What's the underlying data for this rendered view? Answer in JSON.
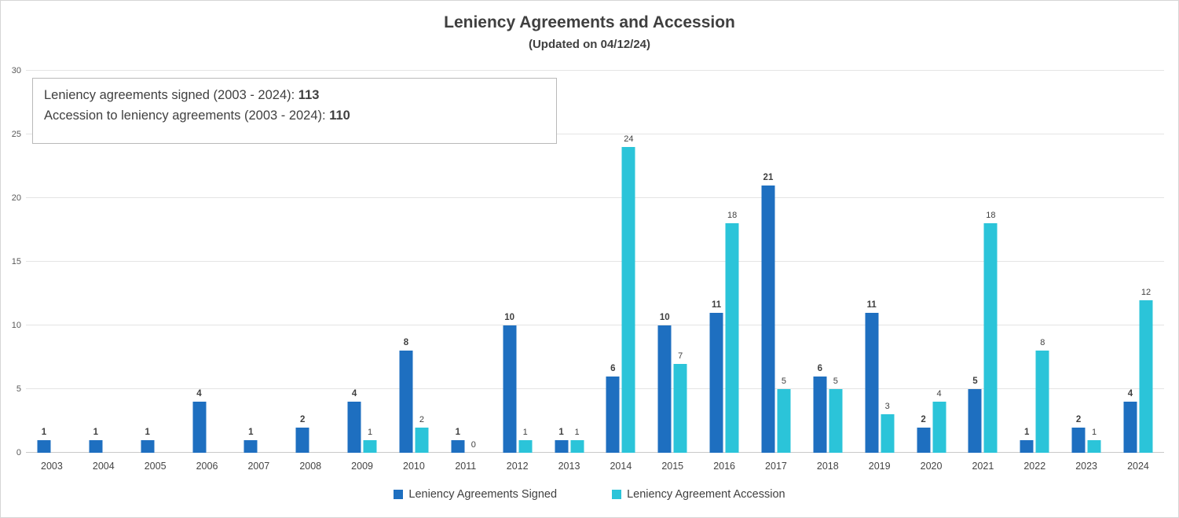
{
  "title": "Leniency Agreements and Accession",
  "subtitle": "(Updated on 04/12/24)",
  "annotation": {
    "line1_label": "Leniency agreements signed (2003 - 2024): ",
    "line1_value": "113",
    "line2_label": "Accession to leniency agreements (2003 - 2024): ",
    "line2_value": "110"
  },
  "legend": [
    {
      "label": "Leniency Agreements Signed",
      "color": "#1E6FC0"
    },
    {
      "label": "Leniency Agreement Accession",
      "color": "#2BC4D9"
    }
  ],
  "chart_data": {
    "type": "bar",
    "title": "Leniency Agreements and Accession",
    "subtitle": "(Updated on 04/12/24)",
    "categories": [
      "2003",
      "2004",
      "2005",
      "2006",
      "2007",
      "2008",
      "2009",
      "2010",
      "2011",
      "2012",
      "2013",
      "2014",
      "2015",
      "2016",
      "2017",
      "2018",
      "2019",
      "2020",
      "2021",
      "2022",
      "2023",
      "2024"
    ],
    "series": [
      {
        "name": "Leniency Agreements Signed",
        "color": "#1E6FC0",
        "values": [
          1,
          1,
          1,
          4,
          1,
          2,
          4,
          8,
          1,
          10,
          1,
          6,
          10,
          11,
          21,
          6,
          11,
          2,
          5,
          1,
          2,
          4
        ]
      },
      {
        "name": "Leniency Agreement Accession",
        "color": "#2BC4D9",
        "values": [
          null,
          null,
          null,
          null,
          null,
          null,
          1,
          2,
          0,
          1,
          1,
          24,
          7,
          18,
          5,
          5,
          3,
          4,
          18,
          8,
          1,
          12
        ]
      }
    ],
    "xlabel": "",
    "ylabel": "",
    "ylim": [
      0,
      30
    ],
    "yticks": [
      0,
      5,
      10,
      15,
      20,
      25,
      30
    ],
    "grid": true,
    "legend_position": "bottom"
  }
}
